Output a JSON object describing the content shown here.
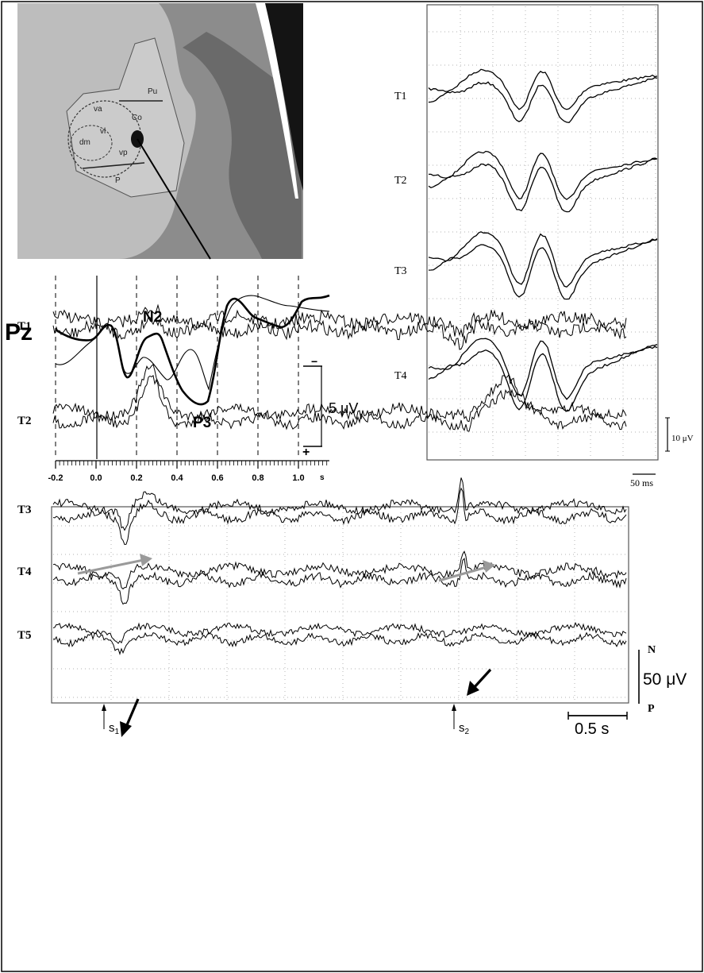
{
  "ct_panel": {
    "region_labels": [
      "va",
      "vl",
      "dm",
      "vp",
      "Co",
      "Pu",
      "P"
    ]
  },
  "erp_panel": {
    "electrode": "Pz",
    "components": [
      "N2",
      "P3"
    ],
    "x_ticks": [
      "-0.2",
      "0.0",
      "0.2",
      "0.4",
      "0.6",
      "0.8",
      "1.0"
    ],
    "x_unit": "s",
    "scale_label": "5 μV",
    "polarity_neg": "−",
    "polarity_pos": "+"
  },
  "averaged_panel": {
    "traces": [
      "T1",
      "T2",
      "T3",
      "T4"
    ],
    "amp_scale": "10 μV",
    "time_scale": "50 ms"
  },
  "raw_panel": {
    "traces": [
      "T1",
      "T2",
      "T3",
      "T4",
      "T5"
    ],
    "stim1_letter": "s",
    "stim1_sub": "1",
    "stim2_letter": "s",
    "stim2_sub": "2",
    "polarity_n": "N",
    "polarity_p": "P",
    "amp_scale": "50 μV",
    "time_scale": "0.5 s"
  }
}
